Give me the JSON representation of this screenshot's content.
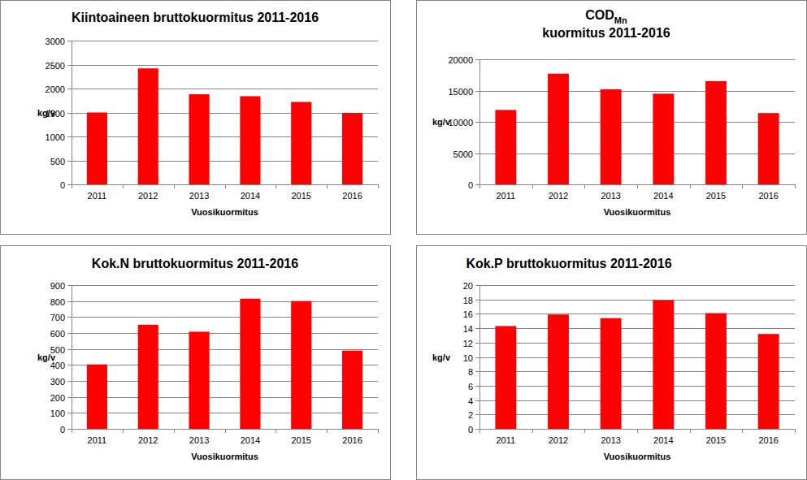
{
  "chart_data": [
    {
      "type": "bar",
      "title": "Kiintoaineen bruttokuormitus 2011-2016",
      "x_label": "Vuosikuormitus",
      "y_label": "kg/v",
      "categories": [
        "2011",
        "2012",
        "2013",
        "2014",
        "2015",
        "2016"
      ],
      "values": [
        1500,
        2420,
        1880,
        1840,
        1720,
        1490
      ],
      "color": "#ff0000",
      "ylim": [
        0,
        3000
      ],
      "yticks": [
        0,
        500,
        1000,
        1500,
        2000,
        2500,
        3000
      ],
      "grid": true
    },
    {
      "type": "bar",
      "title": "COD",
      "title_subscript": "Mn",
      "subtitle": "kuormitus 2011-2016",
      "x_label": "Vuosikuormitus",
      "y_label": "kg/v",
      "categories": [
        "2011",
        "2012",
        "2013",
        "2014",
        "2015",
        "2016"
      ],
      "values": [
        11900,
        17700,
        15200,
        14500,
        16500,
        11400
      ],
      "color": "#ff0000",
      "ylim": [
        0,
        20000
      ],
      "yticks": [
        0,
        5000,
        10000,
        15000,
        20000
      ],
      "grid": true
    },
    {
      "type": "bar",
      "title": "Kok.N bruttokuormitus 2011-2016",
      "x_label": "Vuosikuormitus",
      "y_label": "kg/v",
      "categories": [
        "2011",
        "2012",
        "2013",
        "2014",
        "2015",
        "2016"
      ],
      "values": [
        403,
        652,
        608,
        815,
        800,
        490
      ],
      "color": "#ff0000",
      "ylim": [
        0,
        900
      ],
      "yticks": [
        0,
        100,
        200,
        300,
        400,
        500,
        600,
        700,
        800,
        900
      ],
      "grid": true
    },
    {
      "type": "bar",
      "title": "Kok.P bruttokuormitus 2011-2016",
      "x_label": "Vuosikuormitus",
      "y_label": "kg/v",
      "categories": [
        "2011",
        "2012",
        "2013",
        "2014",
        "2015",
        "2016"
      ],
      "values": [
        14.3,
        15.9,
        15.4,
        17.9,
        16.1,
        13.2
      ],
      "color": "#ff0000",
      "ylim": [
        0,
        20
      ],
      "yticks": [
        0,
        2,
        4,
        6,
        8,
        10,
        12,
        14,
        16,
        18,
        20
      ],
      "grid": true
    }
  ]
}
